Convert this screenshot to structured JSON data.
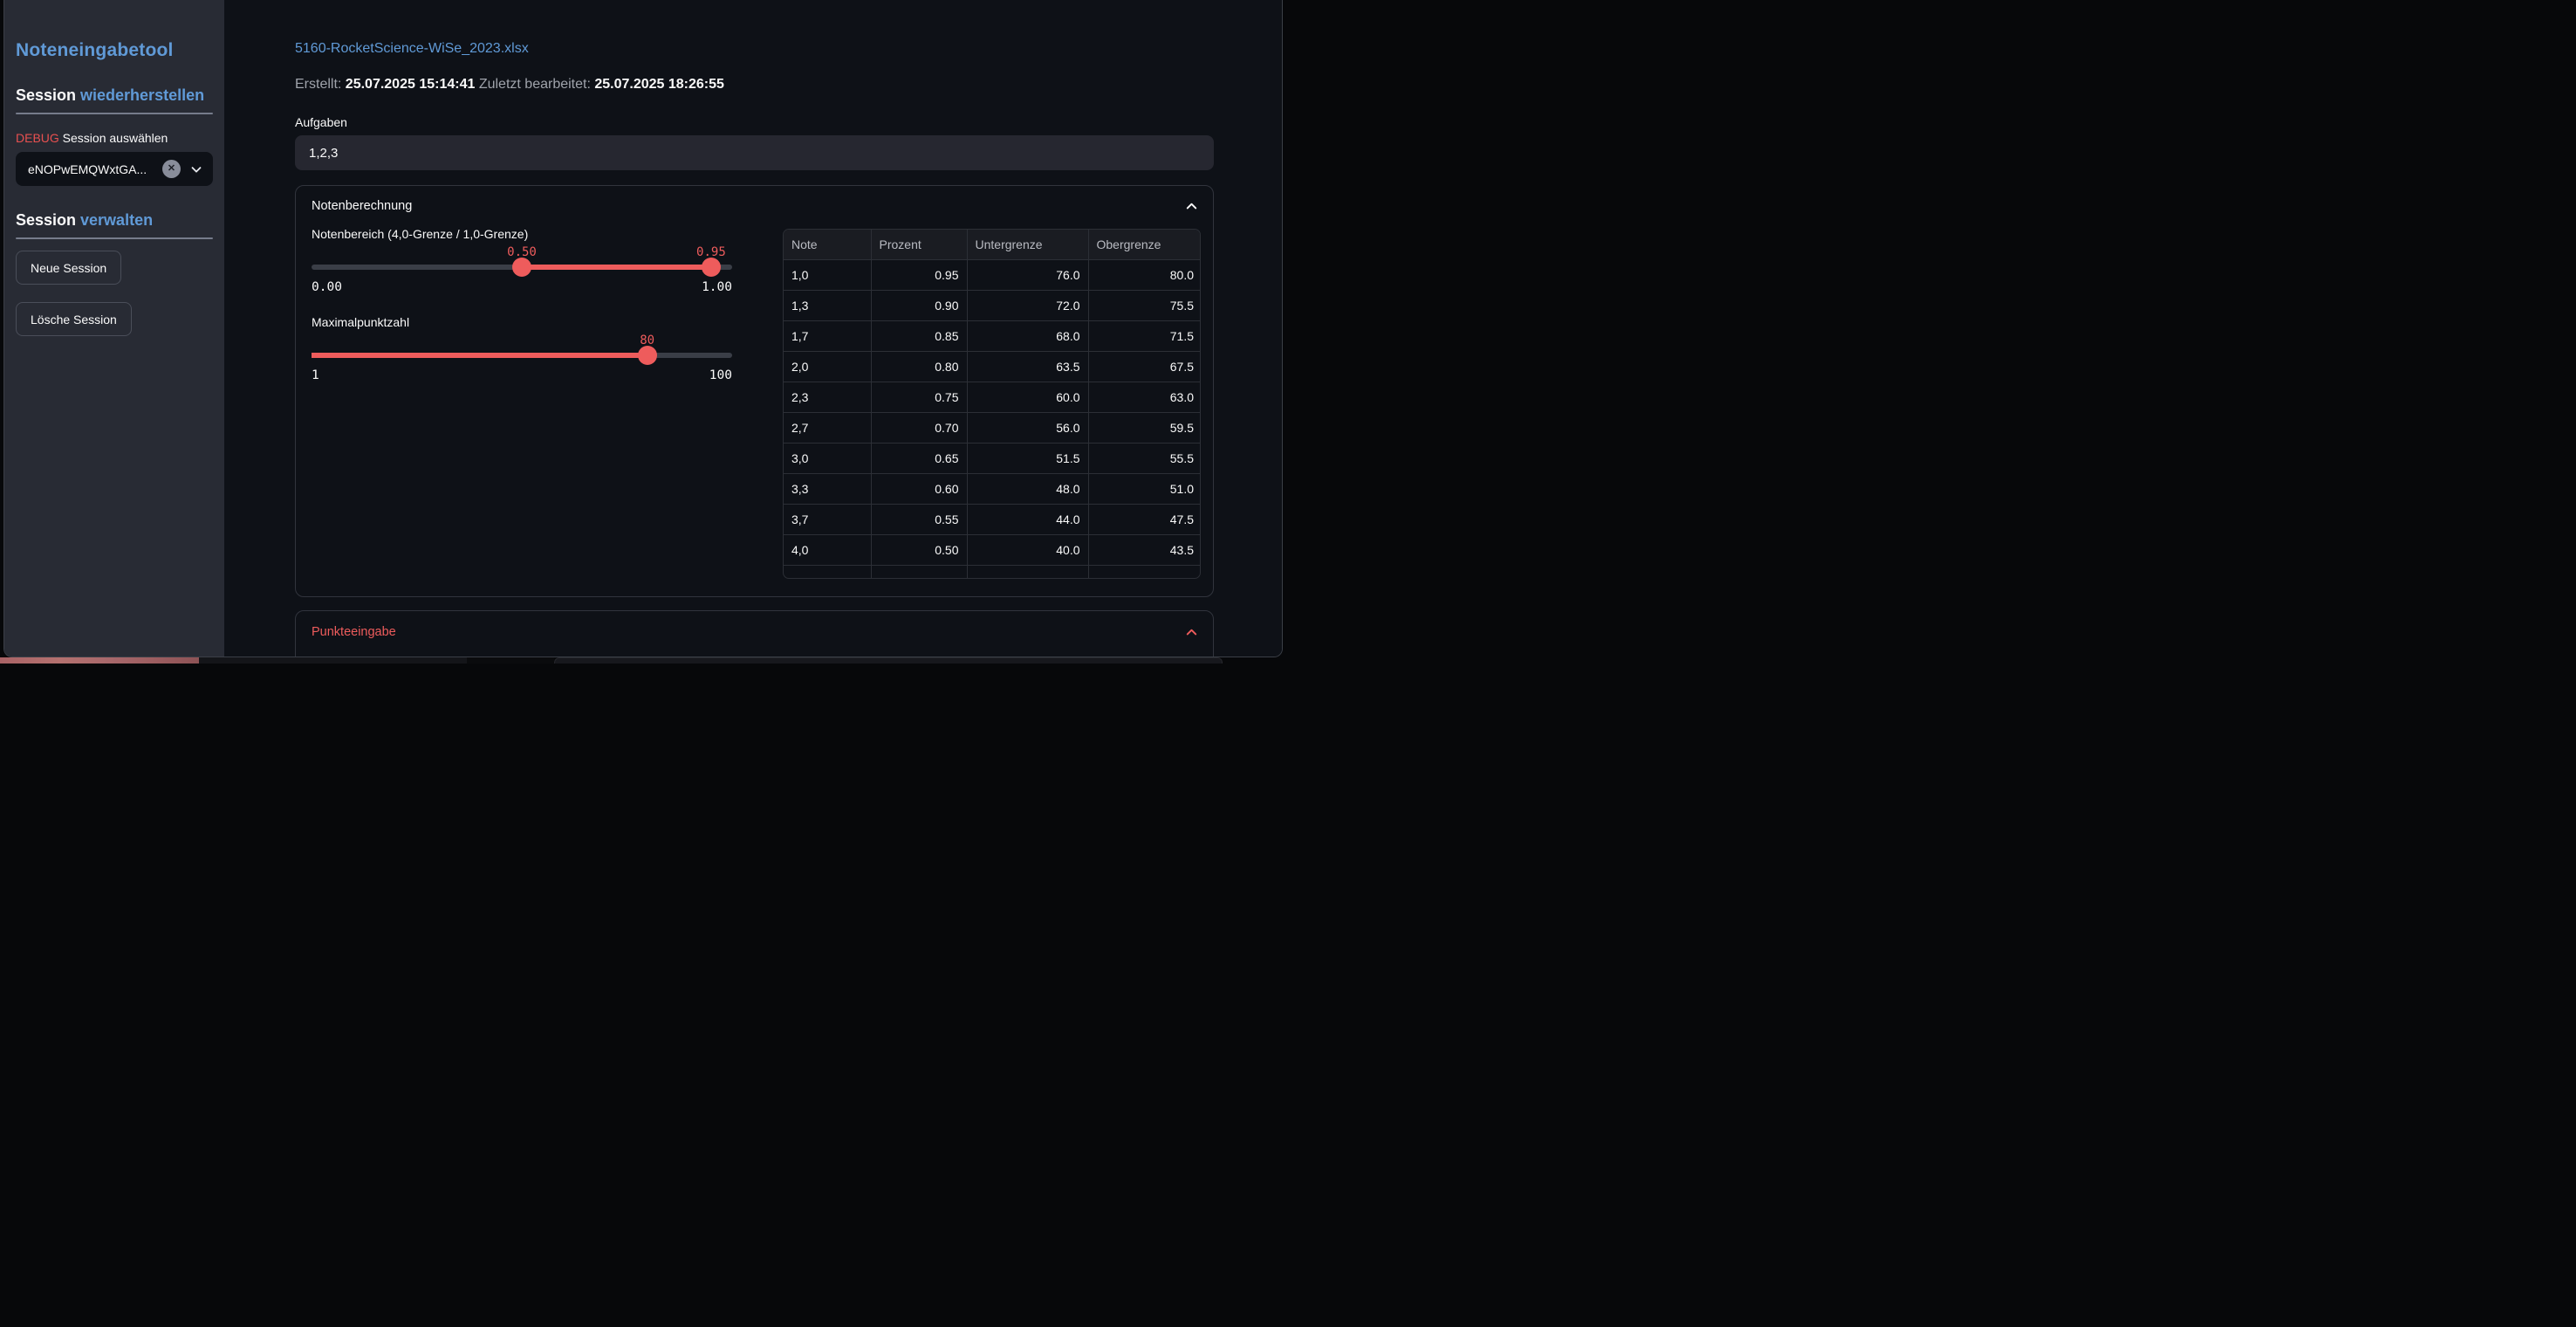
{
  "colors": {
    "accent_red": "#ee5c5c",
    "link_blue": "#609ad7",
    "page_bg": "#0e1117",
    "sidebar_bg": "#282b34"
  },
  "sidebar": {
    "title": "Noteneingabetool",
    "restore_heading": {
      "white": "Session ",
      "blue": "wiederherstellen"
    },
    "debug_label": "DEBUG",
    "select_label": " Session auswählen",
    "select_value": "eNOPwEMQWxtGA...",
    "manage_heading": {
      "white": "Session ",
      "blue": "verwalten"
    },
    "new_session_button": "Neue Session",
    "delete_session_button": "Lösche Session"
  },
  "main": {
    "file_link": "5160-RocketScience-WiSe_2023.xlsx",
    "meta": {
      "created_label": "Erstellt:",
      "created_value": "25.07.2025 15:14:41",
      "modified_label": "Zuletzt bearbeitet:",
      "modified_value": "25.07.2025 18:26:55"
    },
    "tasks": {
      "label": "Aufgaben",
      "value": "1,2,3"
    },
    "grading": {
      "title": "Notenberechnung",
      "range_slider": {
        "label": "Notenbereich (4,0-Grenze / 1,0-Grenze)",
        "low": 0.5,
        "high": 0.95,
        "min": 0,
        "max": 1,
        "low_label": "0.50",
        "high_label": "0.95",
        "min_label": "0.00",
        "max_label": "1.00"
      },
      "points_slider": {
        "label": "Maximalpunktzahl",
        "value": 80,
        "min": 1,
        "max": 100,
        "value_label": "80",
        "min_label": "1",
        "max_label": "100"
      },
      "table": {
        "columns": [
          "Note",
          "Prozent",
          "Untergrenze",
          "Obergrenze"
        ],
        "rows": [
          [
            "1,0",
            "0.95",
            "76.0",
            "80.0"
          ],
          [
            "1,3",
            "0.90",
            "72.0",
            "75.5"
          ],
          [
            "1,7",
            "0.85",
            "68.0",
            "71.5"
          ],
          [
            "2,0",
            "0.80",
            "63.5",
            "67.5"
          ],
          [
            "2,3",
            "0.75",
            "60.0",
            "63.0"
          ],
          [
            "2,7",
            "0.70",
            "56.0",
            "59.5"
          ],
          [
            "3,0",
            "0.65",
            "51.5",
            "55.5"
          ],
          [
            "3,3",
            "0.60",
            "48.0",
            "51.0"
          ],
          [
            "3,7",
            "0.55",
            "44.0",
            "47.5"
          ],
          [
            "4,0",
            "0.50",
            "40.0",
            "43.5"
          ]
        ]
      }
    },
    "points_entry": {
      "title": "Punkteeingabe"
    }
  }
}
